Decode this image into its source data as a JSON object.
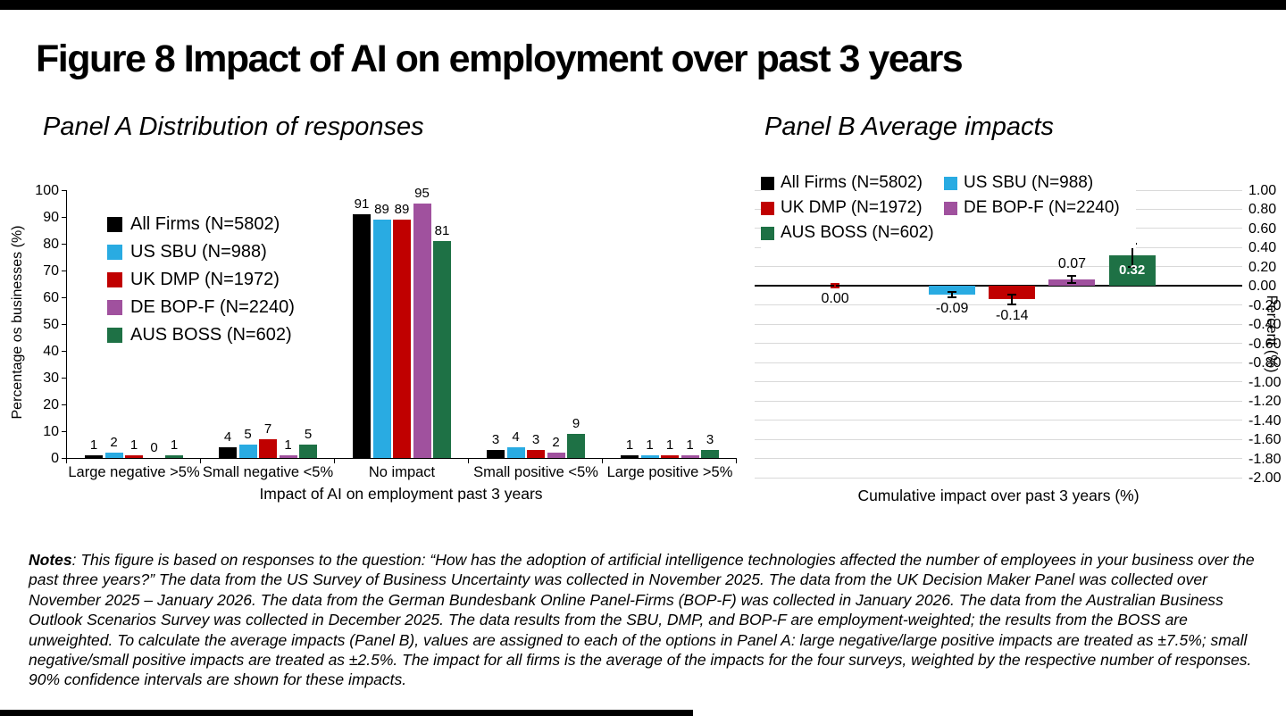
{
  "figure_title": "Figure 8 Impact of AI on employment over past 3 years",
  "chart_data": [
    {
      "panel": "A",
      "type": "bar",
      "title": "Panel A Distribution of responses",
      "categories": [
        "Large negative >5%",
        "Small negative <5%",
        "No impact",
        "Small positive <5%",
        "Large positive >5%"
      ],
      "series": [
        {
          "name": "All Firms (N=5802)",
          "color": "#000000",
          "values": [
            1,
            4,
            91,
            3,
            1
          ]
        },
        {
          "name": "US SBU (N=988)",
          "color": "#29ABE2",
          "values": [
            2,
            5,
            89,
            4,
            1
          ]
        },
        {
          "name": "UK DMP (N=1972)",
          "color": "#C00000",
          "values": [
            1,
            7,
            89,
            3,
            1
          ]
        },
        {
          "name": "DE BOP-F (N=2240)",
          "color": "#A0519E",
          "values": [
            0,
            1,
            95,
            2,
            1
          ]
        },
        {
          "name": "AUS BOSS (N=602)",
          "color": "#1E7145",
          "values": [
            1,
            5,
            81,
            9,
            3
          ]
        }
      ],
      "ylabel": "Percentage os businesses (%)",
      "xlabel": "Impact of AI on employment past 3 years",
      "ylim": [
        0,
        100
      ],
      "ytick_step": 10,
      "grid": false,
      "legend_position": "inside-upper-left"
    },
    {
      "panel": "B",
      "type": "bar",
      "title": "Panel B Average impacts",
      "categories": [
        "All Firms (N=5802)",
        "US SBU (N=988)",
        "UK DMP (N=1972)",
        "DE BOP-F (N=2240)",
        "AUS BOSS (N=602)"
      ],
      "colors": [
        "#000000",
        "#29ABE2",
        "#C00000",
        "#A0519E",
        "#1E7145"
      ],
      "values": [
        0.0,
        -0.09,
        -0.14,
        0.07,
        0.32
      ],
      "value_labels": [
        "0.00",
        "-0.09",
        "-0.14",
        "0.07",
        "0.32"
      ],
      "error_bars": [
        0.02,
        0.03,
        0.05,
        0.04,
        0.12
      ],
      "error_bar_colors": [
        "#C00000",
        "#000000",
        "#000000",
        "#000000",
        "#000000"
      ],
      "label_inside": [
        false,
        false,
        false,
        false,
        true
      ],
      "ylabel_right": "Percent (%)",
      "xlabel": "Cumulative impact over past 3 years (%)",
      "ylim": [
        -2.0,
        1.0
      ],
      "ytick_step": 0.2,
      "grid": true,
      "gridline_color": "#D9D9D9",
      "legend_position": "inside-top"
    }
  ],
  "notes": {
    "label": "Notes",
    "text": ": This figure is based on responses to the question: “How has the adoption of artificial intelligence technologies affected the number of employees in your business over the past three years?” The data from the US Survey of Business Uncertainty was collected in November 2025. The data from the UK Decision Maker Panel was collected over November 2025 – January 2026. The data from the German Bundesbank Online Panel-Firms (BOP-F) was collected in January 2026. The data from the Australian Business Outlook Scenarios Survey was collected in December 2025. The data results from the SBU, DMP, and BOP-F are employment-weighted; the results from the BOSS are unweighted. To calculate the average impacts (Panel B), values are assigned to each of the options in Panel A: large negative/large positive impacts are treated as ±7.5%; small negative/small positive impacts are treated as ±2.5%. The impact for all firms is the average of the impacts for the four surveys, weighted by the respective number of responses. 90% confidence intervals are shown for these impacts."
  }
}
